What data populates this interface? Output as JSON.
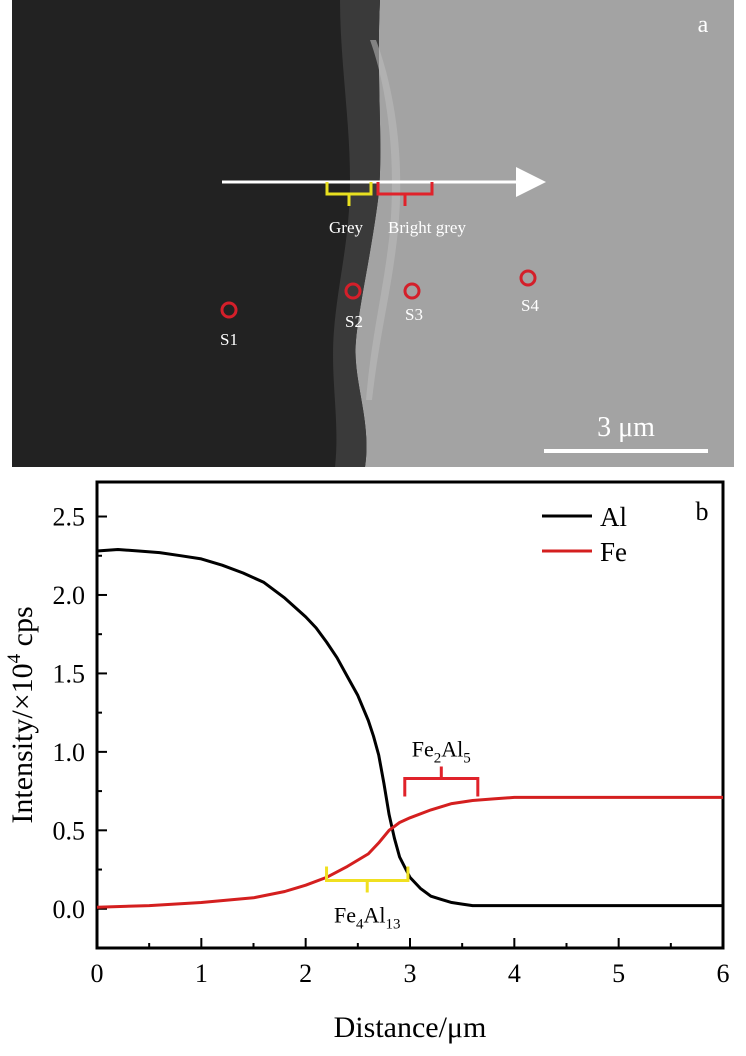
{
  "panel_a": {
    "label": "a",
    "line_scan_arrow": "white-arrow",
    "brackets": [
      {
        "label": "Grey",
        "color": "#e8e020"
      },
      {
        "label": "Bright grey",
        "color": "#e0222a"
      }
    ],
    "points": [
      {
        "label": "S1",
        "color": "#d41f2a"
      },
      {
        "label": "S2",
        "color": "#d41f2a"
      },
      {
        "label": "S3",
        "color": "#d41f2a"
      },
      {
        "label": "S4",
        "color": "#d41f2a"
      }
    ],
    "scale_bar": "3 μm"
  },
  "chart_data": {
    "type": "line",
    "panel_label": "b",
    "xlabel": "Distance/μm",
    "ylabel_parts": {
      "main": "Intensity/×10",
      "sup": "4",
      "unit": " cps"
    },
    "xlim": [
      0,
      6
    ],
    "ylim": [
      -0.25,
      2.72
    ],
    "xticks": [
      0,
      1,
      2,
      3,
      4,
      5,
      6
    ],
    "xtick_labels": [
      "0",
      "1",
      "2",
      "3",
      "4",
      "5",
      "6"
    ],
    "yticks": [
      0.0,
      0.5,
      1.0,
      1.5,
      2.0,
      2.5
    ],
    "ytick_labels": [
      "0.0",
      "0.5",
      "1.0",
      "1.5",
      "2.0",
      "2.5"
    ],
    "grid": false,
    "legend_position": "top-right",
    "series": [
      {
        "name": "Al",
        "color": "#000000",
        "x": [
          0,
          0.2,
          0.4,
          0.6,
          0.8,
          1.0,
          1.2,
          1.4,
          1.6,
          1.8,
          2.0,
          2.1,
          2.2,
          2.3,
          2.4,
          2.5,
          2.6,
          2.65,
          2.7,
          2.75,
          2.8,
          2.85,
          2.9,
          3.0,
          3.1,
          3.2,
          3.3,
          3.4,
          3.5,
          3.6,
          3.8,
          4.0,
          4.5,
          5.0,
          5.5,
          6.0
        ],
        "y": [
          2.28,
          2.29,
          2.28,
          2.27,
          2.25,
          2.23,
          2.19,
          2.14,
          2.08,
          1.98,
          1.86,
          1.79,
          1.7,
          1.6,
          1.48,
          1.36,
          1.2,
          1.1,
          0.98,
          0.8,
          0.6,
          0.45,
          0.33,
          0.2,
          0.13,
          0.08,
          0.06,
          0.04,
          0.03,
          0.02,
          0.02,
          0.02,
          0.02,
          0.02,
          0.02,
          0.02
        ]
      },
      {
        "name": "Fe",
        "color": "#d41f1f",
        "x": [
          0,
          0.5,
          1.0,
          1.5,
          1.8,
          2.0,
          2.2,
          2.4,
          2.6,
          2.7,
          2.8,
          2.9,
          3.0,
          3.2,
          3.4,
          3.6,
          3.8,
          4.0,
          4.5,
          5.0,
          5.5,
          6.0
        ],
        "y": [
          0.01,
          0.02,
          0.04,
          0.07,
          0.11,
          0.15,
          0.2,
          0.27,
          0.35,
          0.42,
          0.5,
          0.55,
          0.58,
          0.63,
          0.67,
          0.69,
          0.7,
          0.71,
          0.71,
          0.71,
          0.71,
          0.71
        ]
      }
    ],
    "annotations": [
      {
        "label": "Fe2Al5",
        "base": "Fe",
        "sub1": "2",
        "mid": "Al",
        "sub2": "5",
        "color": "#e0222a",
        "x_range": [
          2.95,
          3.65
        ],
        "y": 0.83
      },
      {
        "label": "Fe4Al13",
        "base": "Fe",
        "sub1": "4",
        "mid": "Al",
        "sub2": "13",
        "color": "#f0e020",
        "x_range": [
          2.2,
          2.98
        ],
        "y": 0.18
      }
    ]
  }
}
